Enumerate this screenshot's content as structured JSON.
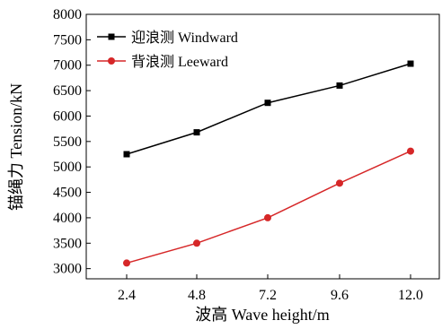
{
  "chart_data": {
    "type": "line",
    "categories": [
      "2.4",
      "4.8",
      "7.2",
      "9.6",
      "12.0"
    ],
    "x": [
      2.4,
      4.8,
      7.2,
      9.6,
      12.0
    ],
    "series": [
      {
        "name": "迎浪测 Windward",
        "color": "#000000",
        "marker": "square",
        "values": [
          5250,
          5680,
          6260,
          6600,
          7030
        ]
      },
      {
        "name": "背浪测 Leeward",
        "color": "#d62728",
        "marker": "circle",
        "values": [
          3110,
          3500,
          4000,
          4680,
          5310
        ]
      }
    ],
    "title": "",
    "xlabel": "波高 Wave height/m",
    "ylabel": "锚绳力 Tension/kN",
    "ylim": [
      2800,
      8000
    ],
    "yticks": [
      3000,
      3500,
      4000,
      4500,
      5000,
      5500,
      6000,
      6500,
      7000,
      7500,
      8000
    ],
    "grid": false,
    "legend_position": "top-left"
  }
}
